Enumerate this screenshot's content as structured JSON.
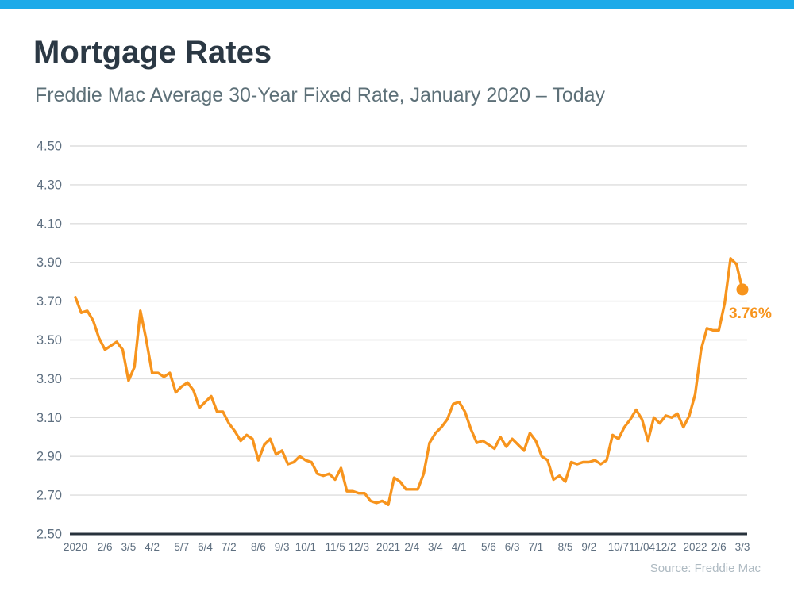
{
  "header": {
    "title": "Mortgage Rates",
    "subtitle": "Freddie Mac Average 30-Year Fixed Rate, January 2020 – Today"
  },
  "footer": {
    "source": "Source: Freddie Mac"
  },
  "colors": {
    "accent_bar": "#1CAAE9",
    "line": "#F7941D",
    "title_text": "#2B3844",
    "subtitle_text": "#5D7078",
    "tick_label": "#5E6F80",
    "gridline": "#DEDEDE",
    "axis_line": "#28323C",
    "source_text": "#AEBAC2",
    "annotation": "#F7941D"
  },
  "chart_data": {
    "type": "line",
    "title": "Mortgage Rates",
    "subtitle": "Freddie Mac Average 30-Year Fixed Rate, January 2020 – Today",
    "grid": true,
    "legend": "none",
    "ylim": [
      2.5,
      4.5
    ],
    "y_tick_values": [
      4.5,
      4.3,
      4.1,
      3.9,
      3.7,
      3.5,
      3.3,
      3.1,
      2.9,
      2.7,
      2.5
    ],
    "y_tick_labels": [
      "4.50",
      "4.30",
      "4.10",
      "3.90",
      "3.70",
      "3.50",
      "3.30",
      "3.10",
      "2.90",
      "2.70",
      "2.50"
    ],
    "x_tick_labels": [
      "2020",
      "2/6",
      "3/5",
      "4/2",
      "5/7",
      "6/4",
      "7/2",
      "8/6",
      "9/3",
      "10/1",
      "11/5",
      "12/3",
      "2021",
      "2/4",
      "3/4",
      "4/1",
      "5/6",
      "6/3",
      "7/1",
      "8/5",
      "9/2",
      "10/7",
      "11/04",
      "12/2",
      "2022",
      "2/6",
      "3/3"
    ],
    "x_tick_indices": [
      0,
      5,
      9,
      13,
      18,
      22,
      26,
      31,
      35,
      39,
      44,
      48,
      53,
      57,
      61,
      65,
      70,
      74,
      78,
      83,
      87,
      92,
      96,
      100,
      105,
      109,
      113
    ],
    "series": [
      {
        "name": "Freddie Mac Average 30-Year Fixed Rate (%)",
        "values": [
          3.72,
          3.64,
          3.65,
          3.6,
          3.51,
          3.45,
          3.47,
          3.49,
          3.45,
          3.29,
          3.36,
          3.65,
          3.5,
          3.33,
          3.33,
          3.31,
          3.33,
          3.23,
          3.26,
          3.28,
          3.24,
          3.15,
          3.18,
          3.21,
          3.13,
          3.13,
          3.07,
          3.03,
          2.98,
          3.01,
          2.99,
          2.88,
          2.96,
          2.99,
          2.91,
          2.93,
          2.86,
          2.87,
          2.9,
          2.88,
          2.87,
          2.81,
          2.8,
          2.81,
          2.78,
          2.84,
          2.72,
          2.72,
          2.71,
          2.71,
          2.67,
          2.66,
          2.67,
          2.65,
          2.79,
          2.77,
          2.73,
          2.73,
          2.73,
          2.81,
          2.97,
          3.02,
          3.05,
          3.09,
          3.17,
          3.18,
          3.13,
          3.04,
          2.97,
          2.98,
          2.96,
          2.94,
          3.0,
          2.95,
          2.99,
          2.96,
          2.93,
          3.02,
          2.98,
          2.9,
          2.88,
          2.78,
          2.8,
          2.77,
          2.87,
          2.86,
          2.87,
          2.87,
          2.88,
          2.86,
          2.88,
          3.01,
          2.99,
          3.05,
          3.09,
          3.14,
          3.09,
          2.98,
          3.1,
          3.07,
          3.11,
          3.1,
          3.12,
          3.05,
          3.11,
          3.22,
          3.45,
          3.56,
          3.55,
          3.55,
          3.69,
          3.92,
          3.89,
          3.76
        ]
      }
    ],
    "end_value": 3.76,
    "end_point_label": "3.76%"
  }
}
